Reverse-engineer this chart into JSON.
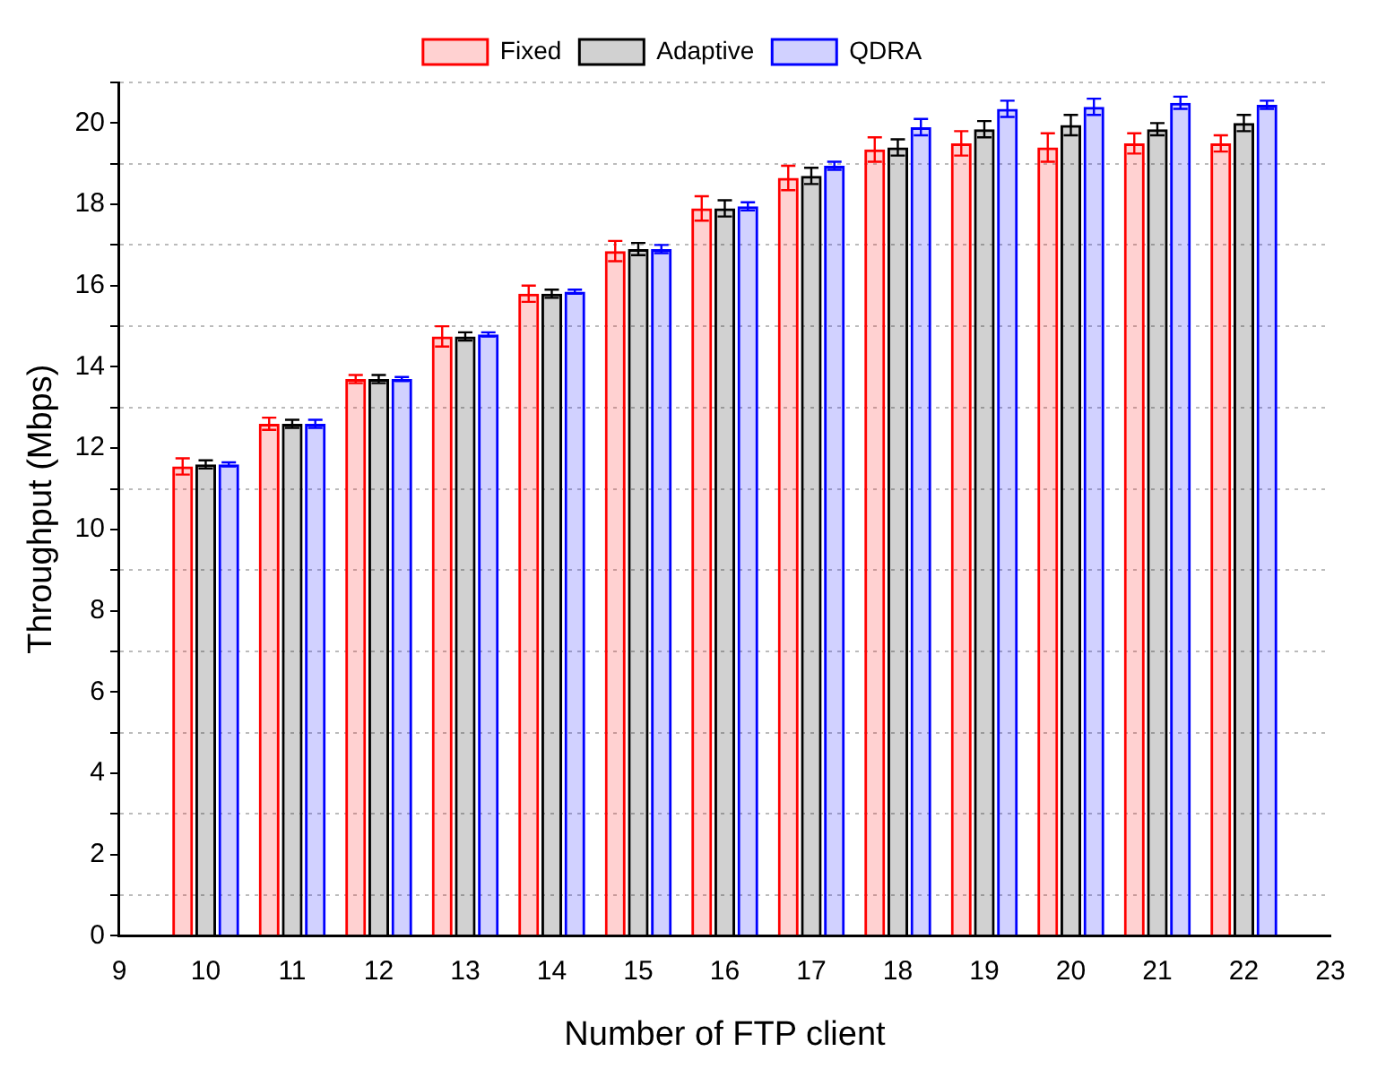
{
  "chart_data": {
    "type": "bar",
    "xlabel": "Number of FTP client",
    "ylabel": "Throughput (Mbps)",
    "x": [
      10,
      11,
      12,
      13,
      14,
      15,
      16,
      17,
      18,
      19,
      20,
      21,
      22
    ],
    "series": [
      {
        "name": "Fixed",
        "color": "#ff0000",
        "values": [
          11.55,
          12.6,
          13.7,
          14.75,
          15.8,
          16.85,
          17.9,
          18.65,
          19.35,
          19.5,
          19.4,
          19.5,
          19.5
        ],
        "errors": [
          0.2,
          0.15,
          0.1,
          0.25,
          0.2,
          0.25,
          0.3,
          0.3,
          0.3,
          0.3,
          0.35,
          0.25,
          0.2
        ]
      },
      {
        "name": "Adaptive",
        "color": "#000000",
        "values": [
          11.6,
          12.6,
          13.7,
          14.75,
          15.8,
          16.9,
          17.9,
          18.7,
          19.4,
          19.85,
          19.95,
          19.85,
          20.0
        ],
        "errors": [
          0.1,
          0.1,
          0.1,
          0.1,
          0.1,
          0.15,
          0.2,
          0.2,
          0.2,
          0.2,
          0.25,
          0.15,
          0.2
        ]
      },
      {
        "name": "QDRA",
        "color": "#0000ff",
        "values": [
          11.6,
          12.6,
          13.7,
          14.8,
          15.85,
          16.9,
          17.95,
          18.95,
          19.9,
          20.35,
          20.4,
          20.5,
          20.45
        ],
        "errors": [
          0.05,
          0.1,
          0.05,
          0.05,
          0.05,
          0.1,
          0.1,
          0.1,
          0.2,
          0.2,
          0.2,
          0.15,
          0.1
        ]
      }
    ],
    "xlim": [
      9,
      23
    ],
    "xticks": [
      9,
      10,
      11,
      12,
      13,
      14,
      15,
      16,
      17,
      18,
      19,
      20,
      21,
      22,
      23
    ],
    "ylim": [
      0,
      21
    ],
    "yticks": [
      0,
      {
        "value": 1,
        "label": null
      },
      2,
      {
        "value": 3,
        "label": null
      },
      4,
      {
        "value": 5,
        "label": null
      },
      6,
      {
        "value": 7,
        "label": null
      },
      8,
      {
        "value": 9,
        "label": null
      },
      10,
      {
        "value": 11,
        "label": null
      },
      12,
      {
        "value": 13,
        "label": null
      },
      14,
      {
        "value": 15,
        "label": null
      },
      16,
      {
        "value": 17,
        "label": null
      },
      18,
      {
        "value": 19,
        "label": null
      },
      20,
      {
        "value": 21,
        "label": null
      }
    ],
    "grid": "y",
    "legend": "top"
  }
}
